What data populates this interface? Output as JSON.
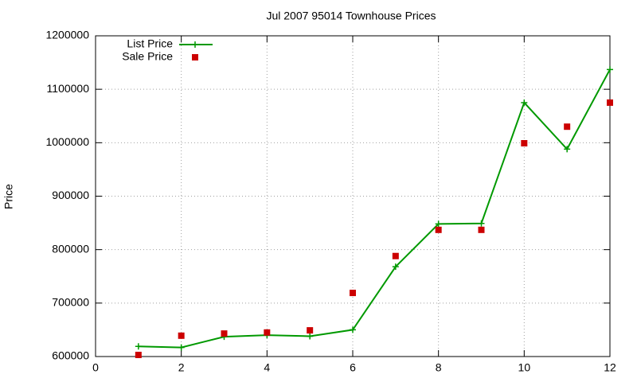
{
  "chart_data": {
    "type": "line",
    "title": "Jul 2007 95014 Townhouse Prices",
    "y_label": "Price",
    "x": [
      1,
      2,
      3,
      4,
      5,
      6,
      7,
      8,
      9,
      10,
      11,
      12
    ],
    "series": [
      {
        "name": "List Price",
        "color": "#009900",
        "marker": "plus",
        "line": true,
        "values": [
          619000,
          617000,
          637000,
          640000,
          638000,
          650000,
          768000,
          848000,
          849000,
          1075000,
          988000,
          1137000
        ]
      },
      {
        "name": "Sale Price",
        "color": "#cc0000",
        "marker": "square",
        "line": false,
        "values": [
          603000,
          639000,
          643000,
          645000,
          649000,
          719000,
          788000,
          837000,
          837000,
          999000,
          1030000,
          1075000
        ]
      }
    ],
    "xlim": [
      0,
      12
    ],
    "xticks": [
      0,
      2,
      4,
      6,
      8,
      10,
      12
    ],
    "ylim": [
      600000,
      1200000
    ],
    "yticks": [
      600000,
      700000,
      800000,
      900000,
      1000000,
      1100000,
      1200000
    ],
    "grid": true,
    "legend": "top-left"
  }
}
